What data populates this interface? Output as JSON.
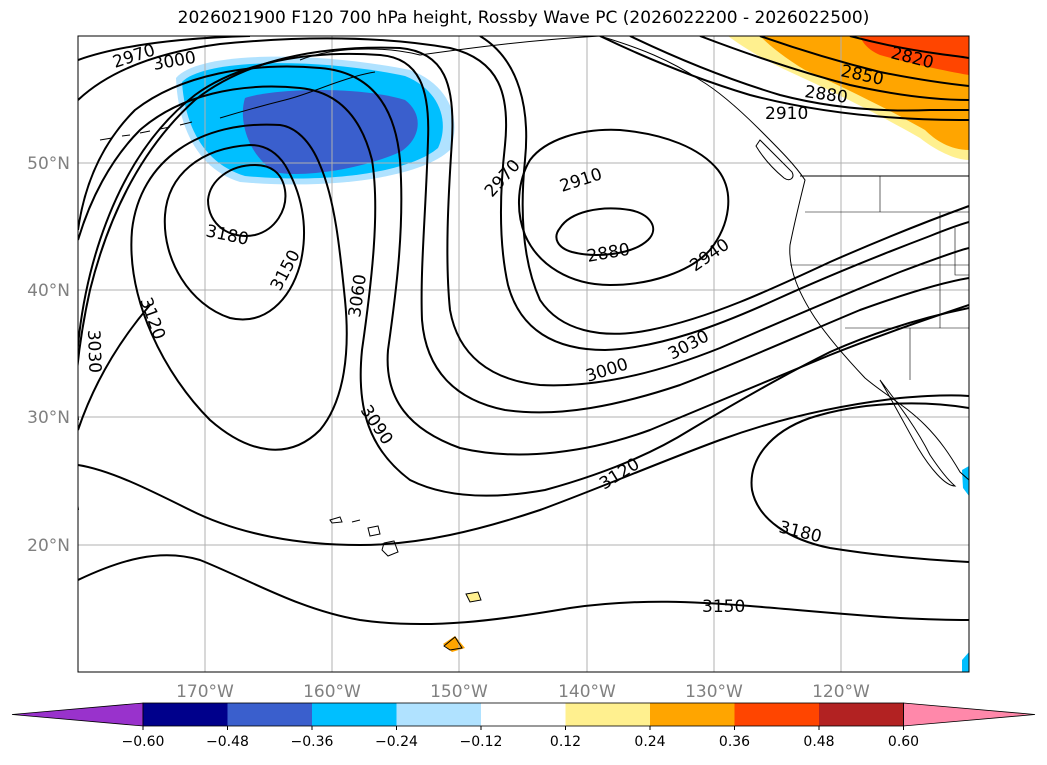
{
  "title": "2026021900 F120 700 hPa height, Rossby Wave PC (2026022200 - 2026022500)",
  "lat_labels": [
    "50°N",
    "40°N",
    "30°N",
    "20°N"
  ],
  "lon_labels": [
    "170°W",
    "160°W",
    "150°W",
    "140°W",
    "130°W",
    "120°W"
  ],
  "contour_labels": [
    "2970",
    "3000",
    "3180",
    "3150",
    "3120",
    "3060",
    "3030",
    "3090",
    "2970",
    "2910",
    "2880",
    "2940",
    "3000",
    "3030",
    "3120",
    "3180",
    "3150",
    "2820",
    "2850",
    "2880",
    "2910"
  ],
  "colorbar": {
    "ticks": [
      "−0.60",
      "−0.48",
      "−0.36",
      "−0.24",
      "−0.12",
      "0.12",
      "0.24",
      "0.36",
      "0.48",
      "0.60"
    ],
    "colors": [
      "#9932cc",
      "#00008b",
      "#3a5fcd",
      "#00bfff",
      "#b0e2ff",
      "#ffffff",
      "#fff08f",
      "#ffa500",
      "#ff4500",
      "#b22222",
      "#ff88aa"
    ]
  },
  "colors": {
    "map_line": "#000000",
    "grid": "#b0b0b0",
    "axis_label": "#808080"
  }
}
